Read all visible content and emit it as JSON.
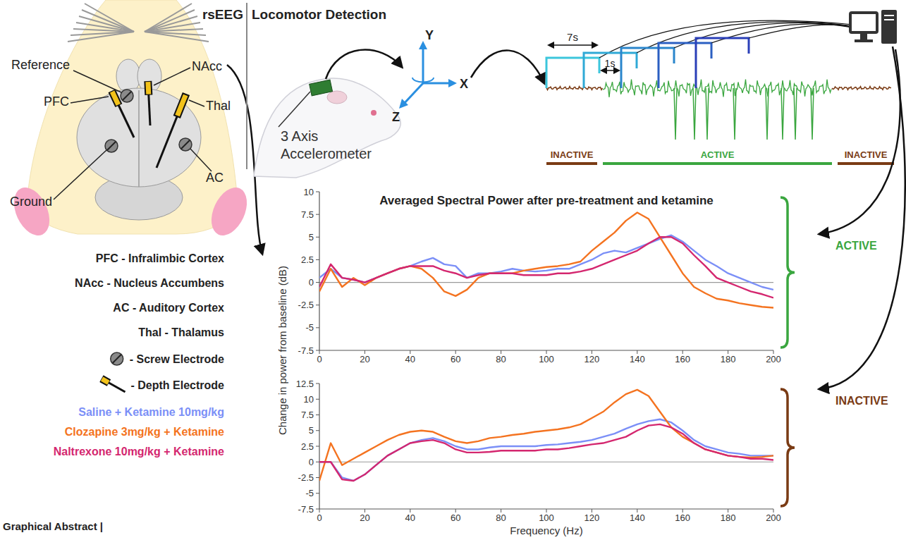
{
  "chart_data": [
    {
      "type": "line",
      "title": "Averaged Spectral Power after pre-treatment and ketamine",
      "annotation": "ACTIVE",
      "x": [
        0,
        5,
        10,
        15,
        20,
        25,
        30,
        35,
        40,
        45,
        50,
        55,
        60,
        65,
        70,
        75,
        80,
        85,
        90,
        95,
        100,
        105,
        110,
        115,
        120,
        125,
        130,
        135,
        140,
        145,
        150,
        155,
        160,
        165,
        170,
        175,
        180,
        185,
        190,
        195,
        200
      ],
      "series": [
        {
          "name": "Saline + Ketamine 10mg/kg",
          "color": "#7b8ff7",
          "values": [
            0.5,
            1.5,
            0.5,
            0.3,
            0,
            0.5,
            1,
            1.5,
            1.8,
            2.3,
            2.7,
            2,
            1.8,
            0.5,
            1,
            1,
            1.2,
            1.5,
            1.3,
            1.2,
            1.3,
            1.5,
            1.5,
            2,
            2.5,
            3.2,
            3.5,
            3.3,
            3.8,
            4.3,
            4.8,
            5.2,
            4.5,
            3.5,
            2.5,
            1.8,
            1,
            0.5,
            0,
            -0.5,
            -0.8
          ]
        },
        {
          "name": "Clozapine 3mg/kg + Ketamine",
          "color": "#f47320",
          "values": [
            -1,
            1.5,
            -0.5,
            0.5,
            -0.3,
            0.5,
            1,
            1.5,
            1.8,
            1.5,
            0.5,
            -1,
            -1.5,
            -0.8,
            0.5,
            1,
            1,
            1,
            1.3,
            1.5,
            1.7,
            1.8,
            2,
            2.3,
            3.5,
            4.5,
            5.5,
            6.8,
            7.7,
            7,
            5,
            3,
            1,
            -0.5,
            -1.2,
            -1.8,
            -2,
            -2.3,
            -2.5,
            -2.7,
            -2.8
          ]
        },
        {
          "name": "Naltrexone 10mg/kg + Ketamine",
          "color": "#d4276f",
          "values": [
            -0.5,
            2,
            0.5,
            0.3,
            0,
            0.5,
            1,
            1.5,
            1.8,
            1.8,
            1.8,
            1.3,
            1,
            0.5,
            0.8,
            1,
            1,
            1,
            0.8,
            0.8,
            0.8,
            1,
            1,
            1.2,
            1.5,
            2,
            2.5,
            3,
            3.5,
            4.3,
            5,
            5,
            4.3,
            3,
            1.8,
            0.5,
            0,
            -0.5,
            -1,
            -1.3,
            -1.7
          ]
        }
      ],
      "xlim": [
        0,
        200
      ],
      "xticks": [
        0,
        20,
        40,
        60,
        80,
        100,
        120,
        140,
        160,
        180,
        200
      ],
      "ylim": [
        -7.5,
        10
      ],
      "yticks": [
        -7.5,
        -5,
        -2.5,
        0,
        2.5,
        5,
        7.5,
        10
      ],
      "grid": false,
      "legend": "left"
    },
    {
      "type": "line",
      "annotation": "INACTIVE",
      "xlabel": "Frequency (Hz)",
      "ylabel": "Change in power from baseline (dB)",
      "x": [
        0,
        5,
        10,
        15,
        20,
        25,
        30,
        35,
        40,
        45,
        50,
        55,
        60,
        65,
        70,
        75,
        80,
        85,
        90,
        95,
        100,
        105,
        110,
        115,
        120,
        125,
        130,
        135,
        140,
        145,
        150,
        155,
        160,
        165,
        170,
        175,
        180,
        185,
        190,
        195,
        200
      ],
      "series": [
        {
          "color": "#7b8ff7",
          "values": [
            0,
            0,
            -2.5,
            -3,
            -2,
            -0.5,
            1,
            2,
            3,
            3.5,
            3.8,
            3.3,
            2.5,
            2,
            2,
            2.3,
            2.5,
            2.5,
            2.5,
            2.5,
            2.7,
            2.8,
            3,
            3.2,
            3.5,
            4,
            4.5,
            5.3,
            6,
            6.5,
            6.8,
            6.3,
            5,
            3.5,
            2.5,
            2,
            1.5,
            1.3,
            1,
            1,
            1
          ]
        },
        {
          "color": "#f47320",
          "values": [
            -3,
            3,
            -0.5,
            0.5,
            1.5,
            2.5,
            3.5,
            4.3,
            4.8,
            5,
            4.8,
            4,
            3.3,
            3,
            3.3,
            3.8,
            4,
            4.3,
            4.5,
            4.8,
            5,
            5.2,
            5.5,
            6,
            7,
            8,
            9.5,
            10.8,
            11.5,
            10.5,
            8,
            5.5,
            4,
            3,
            2,
            1.5,
            1,
            0.8,
            0.7,
            0.8,
            1
          ]
        },
        {
          "color": "#d4276f",
          "values": [
            0,
            0,
            -2.8,
            -3,
            -2,
            -0.5,
            1,
            2,
            3,
            3.3,
            3.5,
            3,
            2,
            1.5,
            1.5,
            1.6,
            1.8,
            1.8,
            1.8,
            1.8,
            2,
            2,
            2.2,
            2.5,
            2.8,
            3,
            3.5,
            4,
            5,
            5.8,
            6,
            5.5,
            4.5,
            3,
            2,
            1.5,
            1,
            0.8,
            0.5,
            0.5,
            0.3
          ]
        }
      ],
      "xlim": [
        0,
        200
      ],
      "xticks": [
        0,
        20,
        40,
        60,
        80,
        100,
        120,
        140,
        160,
        180,
        200
      ],
      "ylim": [
        -7.5,
        12.5
      ],
      "yticks": [
        -7.5,
        -5,
        -2.5,
        0,
        2.5,
        5,
        7.5,
        10,
        12.5
      ],
      "grid": false
    }
  ],
  "diagram": {
    "header": {
      "left": "rsEEG",
      "right": "Locomotor Detection"
    },
    "brain_labels": [
      "Reference",
      "PFC",
      "NAcc",
      "Thal",
      "Ground",
      "AC"
    ],
    "region_key": [
      "PFC - Infralimbic Cortex",
      "NAcc - Nucleus Accumbens",
      "AC - Auditory Cortex",
      "Thal - Thalamus"
    ],
    "electrode_key": [
      "- Screw Electrode",
      "- Depth Electrode"
    ],
    "accelerometer": "3 Axis Accelerometer",
    "axes": [
      "Y",
      "X",
      "Z"
    ],
    "window": "7s",
    "step": "1s",
    "states": [
      "INACTIVE",
      "ACTIVE",
      "INACTIVE"
    ],
    "footer": "Graphical Abstract |"
  }
}
